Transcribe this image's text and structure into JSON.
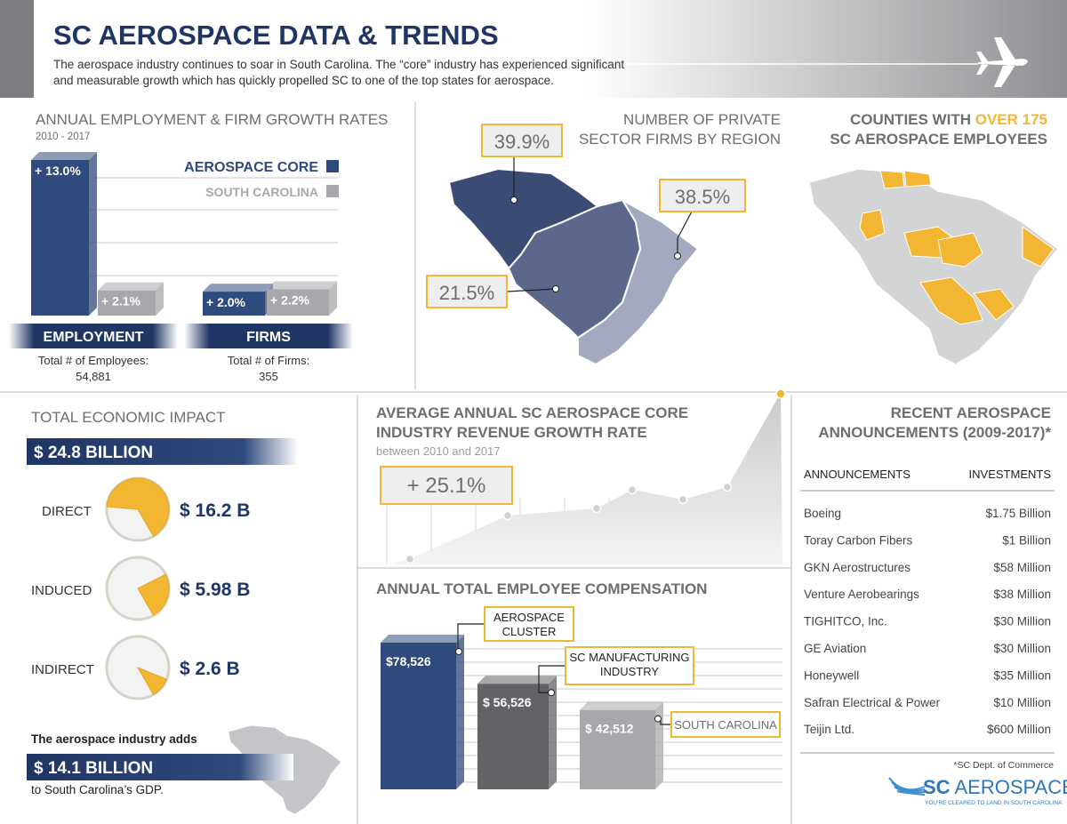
{
  "header": {
    "title": "SC AEROSPACE DATA & TRENDS",
    "intro_lines": [
      "The aerospace industry continues to soar in South Carolina. The “core” industry has experienced significant",
      "and measurable growth which has quickly propelled SC to one of the top states for aerospace."
    ]
  },
  "employment_growth": {
    "title": "ANNUAL EMPLOYMENT & FIRM GROWTH RATES",
    "subtitle": "2010 - 2017",
    "legend": [
      {
        "name": "AEROSPACE CORE",
        "color": "#2f4a7c"
      },
      {
        "name": "SOUTH CAROLINA",
        "color": "#a7a8ab"
      }
    ],
    "groups": [
      {
        "name": "EMPLOYMENT",
        "values": [
          13.0,
          2.1
        ],
        "value_labels": [
          "+ 13.0%",
          "+ 2.1%"
        ],
        "total_label": "Total # of Employees:",
        "total": "54,881"
      },
      {
        "name": "FIRMS",
        "values": [
          2.0,
          2.2
        ],
        "value_labels": [
          "+ 2.0%",
          "+ 2.2%"
        ],
        "total_label": "Total # of Firms:",
        "total": "355"
      }
    ]
  },
  "firms_by_region": {
    "title_lines": [
      "NUMBER OF PRIVATE",
      "SECTOR FIRMS BY REGION"
    ],
    "labels": [
      "39.9%",
      "38.5%",
      "21.5%"
    ]
  },
  "counties": {
    "title_parts": [
      "COUNTIES WITH",
      "OVER 175",
      "SC AEROSPACE EMPLOYEES"
    ]
  },
  "economic_impact": {
    "title": "TOTAL ECONOMIC IMPACT",
    "total": {
      "value": 24.8,
      "label": "$ 24.8 BILLION"
    },
    "items": [
      {
        "name": "DIRECT",
        "value": 16.2,
        "value_label": "$ 16.2 B"
      },
      {
        "name": "INDUCED",
        "value": 5.98,
        "value_label": "$ 5.98 B"
      },
      {
        "name": "INDIRECT",
        "value": 2.6,
        "value_label": "$ 2.6 B"
      }
    ],
    "gdp_intro": "The aerospace industry adds",
    "gdp": "$ 14.1 BILLION",
    "gdp_outro": "to South Carolina’s GDP."
  },
  "revenue": {
    "title_lines": [
      "AVERAGE ANNUAL SC AEROSPACE CORE",
      "INDUSTRY REVENUE GROWTH RATE"
    ],
    "subtitle": "between 2010 and 2017",
    "value": "+ 25.1%"
  },
  "compensation": {
    "title": "ANNUAL TOTAL EMPLOYEE COMPENSATION",
    "bars": [
      {
        "name_lines": [
          "AEROSPACE",
          "CLUSTER"
        ],
        "value": 78526,
        "value_label": "$78,526",
        "color": "#2f4a7c"
      },
      {
        "name_lines": [
          "SC MANUFACTURING",
          "INDUSTRY"
        ],
        "value": 56526,
        "value_label": "$ 56,526",
        "color": "#626366"
      },
      {
        "name_lines": [
          "SOUTH CAROLINA"
        ],
        "value": 42512,
        "value_label": "$ 42,512",
        "color": "#a7a8ab"
      }
    ]
  },
  "announcements": {
    "title_lines": [
      "RECENT AEROSPACE",
      "ANNOUNCEMENTS (2009-2017)*"
    ],
    "columns": [
      "ANNOUNCEMENTS",
      "INVESTMENTS"
    ],
    "rows": [
      [
        "Boeing",
        "$1.75 Billion"
      ],
      [
        "Toray Carbon Fibers",
        "$1 Billion"
      ],
      [
        "GKN Aerostructures",
        "$58 Million"
      ],
      [
        "Venture Aerobearings",
        "$38 Million"
      ],
      [
        "TIGHITCO, Inc.",
        "$30 Million"
      ],
      [
        "GE Aviation",
        "$30 Million"
      ],
      [
        "Honeywell",
        "$35 Million"
      ],
      [
        "Safran Electrical & Power",
        "$10 Million"
      ],
      [
        "Teijin Ltd.",
        "$600 Million"
      ]
    ],
    "source": "*SC Dept. of Commerce"
  },
  "logo": {
    "parts": [
      "SC",
      "AEROSPACE"
    ],
    "tagline": "YOU'RE CLEARED TO LAND IN SOUTH CAROLINA"
  }
}
